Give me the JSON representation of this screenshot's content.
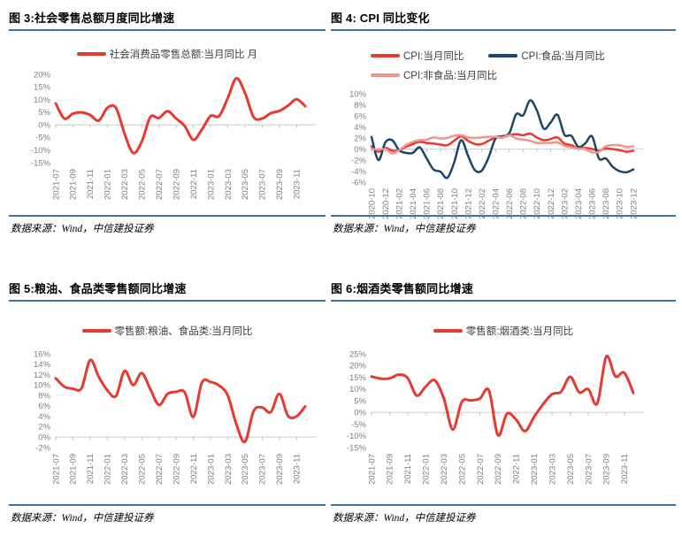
{
  "colors": {
    "line_red": "#e8392e",
    "line_dark_blue": "#1d4568",
    "line_pink": "#f09490",
    "rule_blue": "#41719c",
    "axis_text_gray": "#7f7f7f",
    "axis_line_gray": "#d6d6d6"
  },
  "figures": [
    {
      "title": "图 3:社会零售总额月度同比增速",
      "source": "数据来源：Wind，中信建投证券"
    },
    {
      "title": "图 4: CPI 同比变化",
      "source": "数据来源：Wind，中信建投证券"
    },
    {
      "title": "图 5:粮油、食品类零售额同比增速",
      "source": "数据来源：Wind，中信建投证券"
    },
    {
      "title": "图 6:烟酒类零售额同比增速",
      "source": "数据来源：Wind，中信建投证券"
    }
  ],
  "chart_data": [
    {
      "type": "line",
      "title": "图 3:社会零售总额月度同比增速",
      "x": [
        "2021-07",
        "2021-08",
        "2021-09",
        "2021-10",
        "2021-11",
        "2021-12",
        "2022-01",
        "2022-02",
        "2022-03",
        "2022-04",
        "2022-05",
        "2022-06",
        "2022-07",
        "2022-08",
        "2022-09",
        "2022-10",
        "2022-11",
        "2022-12",
        "2023-01",
        "2023-02",
        "2023-03",
        "2023-04",
        "2023-05",
        "2023-06",
        "2023-07",
        "2023-08",
        "2023-09",
        "2023-10",
        "2023-11",
        "2023-12"
      ],
      "x_label_every": 2,
      "ylim": [
        -15,
        20
      ],
      "yticks": [
        "20%",
        "15%",
        "10%",
        "5%",
        "0%",
        "-5%",
        "-10%",
        "-15%"
      ],
      "grid": false,
      "legend_position": "top-center",
      "series": [
        {
          "name": "社会消费品零售总额:当月同比 月",
          "color": "#e8392e",
          "width": 3,
          "values": [
            8.5,
            2.5,
            4.4,
            4.9,
            3.9,
            1.7,
            6.7,
            6.7,
            -3.5,
            -11.1,
            -6.7,
            3.1,
            2.7,
            5.4,
            2.5,
            -0.5,
            -5.9,
            -1.8,
            3.5,
            3.5,
            10.6,
            18.4,
            12.7,
            3.1,
            2.5,
            4.6,
            5.5,
            7.6,
            10.1,
            7.4
          ]
        }
      ]
    },
    {
      "type": "line",
      "title": "图 4: CPI 同比变化",
      "x": [
        "2020-10",
        "2020-11",
        "2020-12",
        "2021-01",
        "2021-02",
        "2021-03",
        "2021-04",
        "2021-05",
        "2021-06",
        "2021-07",
        "2021-08",
        "2021-09",
        "2021-10",
        "2021-11",
        "2021-12",
        "2022-01",
        "2022-02",
        "2022-03",
        "2022-04",
        "2022-05",
        "2022-06",
        "2022-07",
        "2022-08",
        "2022-09",
        "2022-10",
        "2022-11",
        "2022-12",
        "2023-01",
        "2023-02",
        "2023-03",
        "2023-04",
        "2023-05",
        "2023-06",
        "2023-07",
        "2023-08",
        "2023-09",
        "2023-10",
        "2023-11",
        "2023-12"
      ],
      "x_label_every": 2,
      "ylim": [
        -6,
        10
      ],
      "yticks": [
        "10%",
        "8%",
        "6%",
        "4%",
        "2%",
        "0%",
        "-2%",
        "-4%",
        "-6%"
      ],
      "grid": false,
      "legend_position": "top-center",
      "series": [
        {
          "name": "CPI:当月同比",
          "color": "#e8392e",
          "width": 2.5,
          "values": [
            0.5,
            -0.5,
            0.2,
            -0.3,
            -0.2,
            0.4,
            0.9,
            1.3,
            1.1,
            1.0,
            0.8,
            0.7,
            1.5,
            2.3,
            1.5,
            0.9,
            0.9,
            1.5,
            2.1,
            2.1,
            2.5,
            2.7,
            2.5,
            2.8,
            2.1,
            1.6,
            1.8,
            2.1,
            1.0,
            0.7,
            0.1,
            0.2,
            0.0,
            -0.3,
            0.1,
            0.0,
            -0.2,
            -0.5,
            -0.3
          ]
        },
        {
          "name": "CPI:食品:当月同比",
          "color": "#1d4568",
          "width": 2.5,
          "values": [
            2.2,
            -2.0,
            1.2,
            1.6,
            -0.2,
            -0.7,
            -0.7,
            0.3,
            -1.7,
            -3.7,
            -4.1,
            -5.2,
            -2.4,
            1.6,
            -1.2,
            -3.8,
            -3.9,
            -1.5,
            1.9,
            2.3,
            2.9,
            6.3,
            6.1,
            8.8,
            7.0,
            3.7,
            4.8,
            6.2,
            2.6,
            2.4,
            0.4,
            1.0,
            2.3,
            -1.7,
            -1.7,
            -3.2,
            -4.0,
            -4.2,
            -3.7
          ]
        },
        {
          "name": "CPI:非食品:当月同比",
          "color": "#f09490",
          "width": 2.5,
          "values": [
            0.0,
            -0.1,
            0.0,
            -0.8,
            -0.2,
            0.7,
            1.3,
            1.6,
            1.7,
            2.1,
            1.9,
            2.0,
            2.4,
            2.5,
            2.1,
            2.0,
            2.1,
            2.2,
            2.2,
            2.1,
            2.5,
            1.9,
            1.7,
            1.5,
            1.1,
            1.1,
            1.1,
            1.2,
            0.6,
            0.3,
            0.1,
            0.0,
            -0.6,
            -0.5,
            0.5,
            0.7,
            0.7,
            0.4,
            0.5
          ]
        }
      ]
    },
    {
      "type": "line",
      "title": "图 5:粮油、食品类零售额同比增速",
      "x": [
        "2021-07",
        "2021-08",
        "2021-09",
        "2021-10",
        "2021-11",
        "2021-12",
        "2022-01",
        "2022-02",
        "2022-03",
        "2022-04",
        "2022-05",
        "2022-06",
        "2022-07",
        "2022-08",
        "2022-09",
        "2022-10",
        "2022-11",
        "2022-12",
        "2023-01",
        "2023-02",
        "2023-03",
        "2023-04",
        "2023-05",
        "2023-06",
        "2023-07",
        "2023-08",
        "2023-09",
        "2023-10",
        "2023-11",
        "2023-12"
      ],
      "x_label_every": 2,
      "ylim": [
        -2,
        16
      ],
      "yticks": [
        "16%",
        "14%",
        "12%",
        "10%",
        "8%",
        "6%",
        "4%",
        "2%",
        "0%",
        "-2%"
      ],
      "grid": false,
      "legend_position": "top-center",
      "series": [
        {
          "name": "零售额:粮油、食品类:当月同比",
          "color": "#e8392e",
          "width": 3,
          "values": [
            11.3,
            9.7,
            9.3,
            9.4,
            14.8,
            11.6,
            9.0,
            7.9,
            12.7,
            10.0,
            12.3,
            9.2,
            6.2,
            8.3,
            8.7,
            8.6,
            3.9,
            10.5,
            10.6,
            9.9,
            8.0,
            2.5,
            -0.9,
            5.0,
            5.7,
            4.8,
            8.3,
            4.1,
            4.0,
            5.9
          ]
        }
      ]
    },
    {
      "type": "line",
      "title": "图 6:烟酒类零售额同比增速",
      "x": [
        "2021-07",
        "2021-08",
        "2021-09",
        "2021-10",
        "2021-11",
        "2021-12",
        "2022-01",
        "2022-02",
        "2022-03",
        "2022-04",
        "2022-05",
        "2022-06",
        "2022-07",
        "2022-08",
        "2022-09",
        "2022-10",
        "2022-11",
        "2022-12",
        "2023-01",
        "2023-02",
        "2023-03",
        "2023-04",
        "2023-05",
        "2023-06",
        "2023-07",
        "2023-08",
        "2023-09",
        "2023-10",
        "2023-11",
        "2023-12"
      ],
      "x_label_every": 2,
      "ylim": [
        -15,
        25
      ],
      "yticks": [
        "25%",
        "20%",
        "15%",
        "10%",
        "5%",
        "0%",
        "-5%",
        "-10%",
        "-15%"
      ],
      "grid": false,
      "legend_position": "top-center",
      "series": [
        {
          "name": "零售额:烟酒类:当月同比",
          "color": "#e8392e",
          "width": 3,
          "values": [
            15.3,
            14.4,
            14.5,
            16.1,
            14.7,
            7.2,
            11.0,
            13.7,
            6.0,
            -7.3,
            4.5,
            5.1,
            5.9,
            9.4,
            -9.7,
            -0.6,
            -3.0,
            -8.0,
            -2.0,
            3.5,
            7.8,
            8.8,
            15.2,
            8.6,
            9.9,
            3.8,
            23.8,
            15.4,
            16.9,
            8.3
          ]
        }
      ]
    }
  ]
}
